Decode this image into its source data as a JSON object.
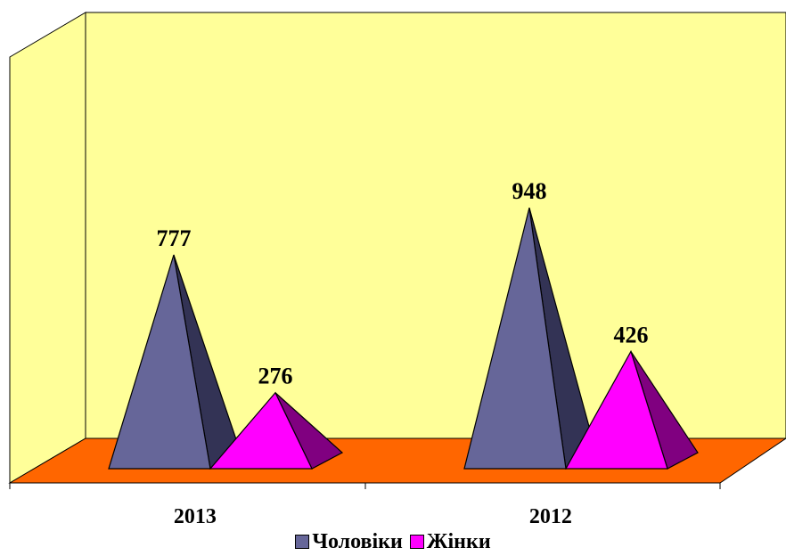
{
  "chart_data": {
    "type": "bar",
    "style": "3d-pyramid",
    "categories": [
      "2013",
      "2012"
    ],
    "series": [
      {
        "name": "Чоловіки",
        "values": [
          777,
          948
        ],
        "color": "#666699",
        "shade": "#333355"
      },
      {
        "name": "Жінки",
        "values": [
          276,
          426
        ],
        "color": "#ff00ff",
        "shade": "#800080"
      }
    ],
    "data_labels": [
      [
        "777",
        "948"
      ],
      [
        "276",
        "426"
      ]
    ],
    "title": "",
    "xlabel": "",
    "ylabel": "",
    "ylim": [
      0,
      1100
    ],
    "grid": false,
    "legend": "bottom",
    "wall_color": "#ffff99",
    "floor_color": "#ff6600"
  }
}
